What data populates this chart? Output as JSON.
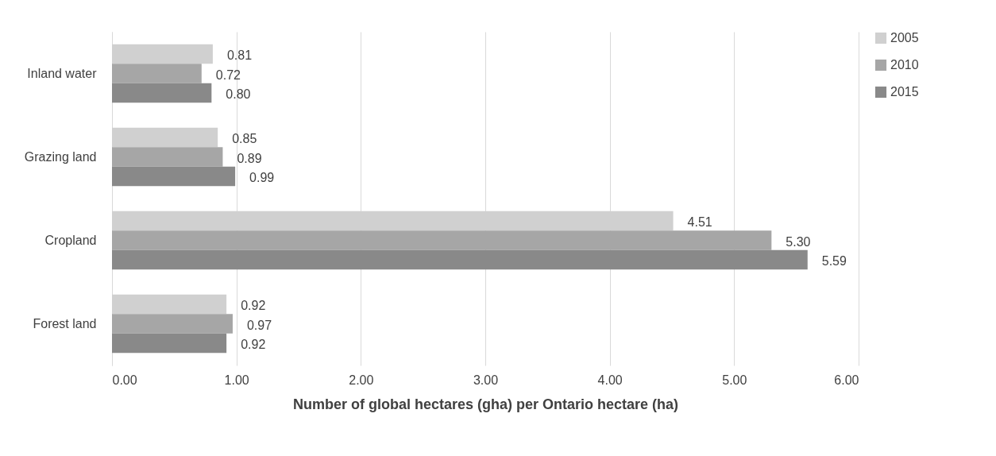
{
  "chart_data": {
    "type": "bar",
    "orientation": "horizontal",
    "xlabel": "Number of global hectares (gha) per Ontario hectare (ha)",
    "categories": [
      "Inland water",
      "Grazing land",
      "Cropland",
      "Forest land"
    ],
    "series": [
      {
        "name": "2005",
        "color": "#d0d0d0",
        "values": [
          0.81,
          0.85,
          4.51,
          0.92
        ],
        "value_labels": [
          "0.81",
          "0.85",
          "4.51",
          "0.92"
        ]
      },
      {
        "name": "2010",
        "color": "#a6a6a6",
        "values": [
          0.72,
          0.89,
          5.3,
          0.97
        ],
        "value_labels": [
          "0.72",
          "0.89",
          "5.30",
          "0.97"
        ]
      },
      {
        "name": "2015",
        "color": "#898989",
        "values": [
          0.8,
          0.99,
          5.59,
          0.92
        ],
        "value_labels": [
          "0.80",
          "0.99",
          "5.59",
          "0.92"
        ]
      }
    ],
    "xlim": [
      0,
      6
    ],
    "xticks": [
      {
        "value": 0,
        "label": "0.00"
      },
      {
        "value": 1,
        "label": "1.00"
      },
      {
        "value": 2,
        "label": "2.00"
      },
      {
        "value": 3,
        "label": "3.00"
      },
      {
        "value": 4,
        "label": "4.00"
      },
      {
        "value": 5,
        "label": "5.00"
      },
      {
        "value": 6,
        "label": "6.00"
      }
    ],
    "grid": "x",
    "legend": "right"
  }
}
